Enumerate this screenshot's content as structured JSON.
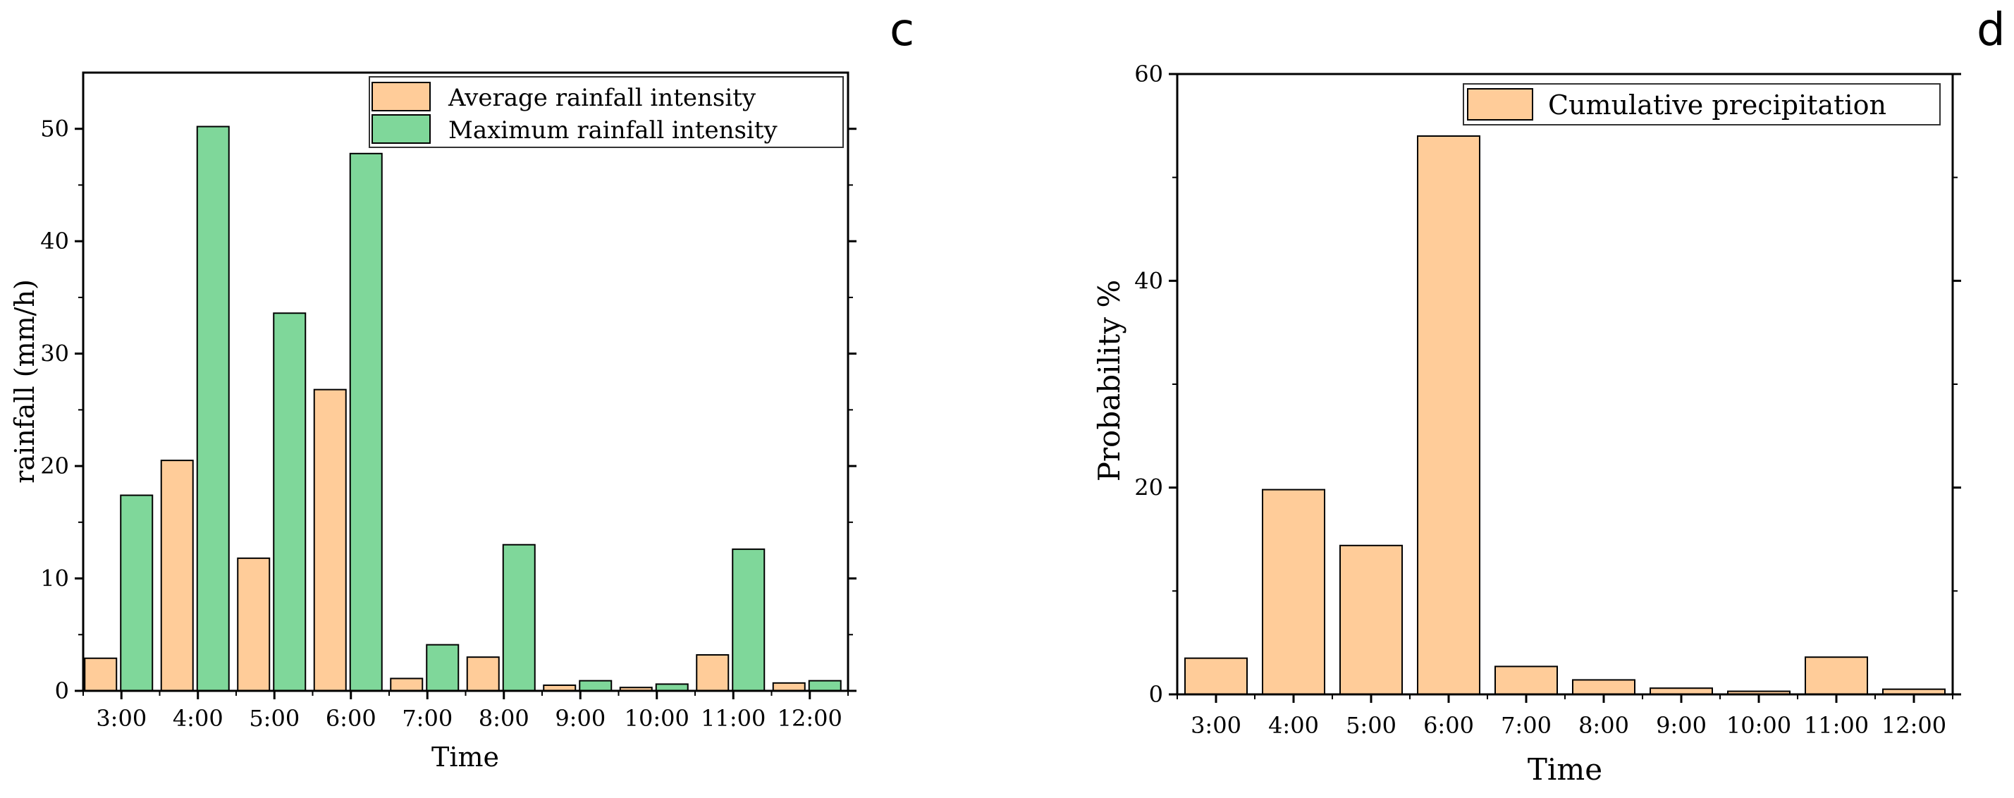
{
  "panels": [
    {
      "letter": "c",
      "legend": [
        "Average rainfall intensity",
        "Maximum rainfall intensity"
      ],
      "colors": [
        "#FFCC99",
        "#7FD79A"
      ]
    },
    {
      "letter": "d",
      "legend": [
        "Cumulative precipitation"
      ],
      "colors": [
        "#FFCC99"
      ]
    }
  ],
  "chart_data": [
    {
      "type": "bar",
      "title": "",
      "xlabel": "Time",
      "ylabel": "rainfall (mm/h)",
      "categories": [
        "3:00",
        "4:00",
        "5:00",
        "6:00",
        "7:00",
        "8:00",
        "9:00",
        "10:00",
        "11:00",
        "12:00"
      ],
      "series": [
        {
          "name": "Average rainfall intensity",
          "values": [
            2.9,
            20.5,
            11.8,
            26.8,
            1.1,
            3.0,
            0.5,
            0.3,
            3.2,
            0.7
          ]
        },
        {
          "name": "Maximum rainfall intensity",
          "values": [
            17.4,
            50.2,
            33.6,
            47.8,
            4.1,
            13.0,
            0.9,
            0.6,
            12.6,
            0.9
          ]
        }
      ],
      "ylim": [
        0,
        55
      ],
      "yticks": [
        0,
        10,
        20,
        30,
        40,
        50
      ],
      "legend_position": "top-right",
      "grid": false
    },
    {
      "type": "bar",
      "title": "",
      "xlabel": "Time",
      "ylabel": "Probability %",
      "categories": [
        "3:00",
        "4:00",
        "5:00",
        "6:00",
        "7:00",
        "8:00",
        "9:00",
        "10:00",
        "11:00",
        "12:00"
      ],
      "series": [
        {
          "name": "Cumulative precipitation",
          "values": [
            3.5,
            19.8,
            14.4,
            54.0,
            2.7,
            1.4,
            0.6,
            0.3,
            3.6,
            0.5
          ]
        }
      ],
      "ylim": [
        0,
        60
      ],
      "yticks": [
        0,
        20,
        40,
        60
      ],
      "legend_position": "top-right",
      "grid": false
    }
  ]
}
